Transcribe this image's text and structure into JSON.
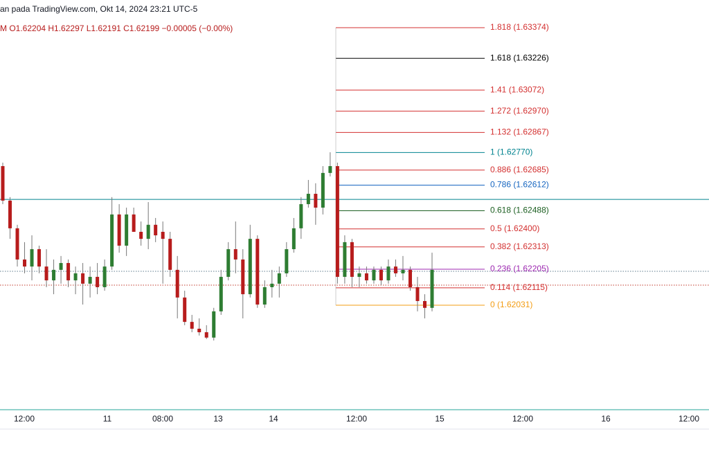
{
  "header": {
    "title": "an pada TradingView.com, Okt 14, 2024 23:21 UTC-5",
    "ohlc": "M O1.62204 H1.62297 L1.62191 C1.62199 −0.00005 (−0.00%)"
  },
  "chart_data": {
    "type": "candlestick",
    "ylim": [
      1.61525,
      1.63508
    ],
    "up_color": "#2e7d32",
    "down_color": "#b71c1c",
    "open": [
      1.62704,
      1.62537,
      1.62403,
      1.62252,
      1.62218,
      1.62302,
      1.62218,
      1.62151,
      1.62202,
      1.62235,
      1.62151,
      1.62185,
      1.62135,
      1.62168,
      1.62118,
      1.62218,
      1.6247,
      1.62319,
      1.6247,
      1.62386,
      1.62352,
      1.6242,
      1.62386,
      1.62352,
      1.62202,
      1.62068,
      1.6195,
      1.61917,
      1.619,
      1.61874,
      1.62001,
      1.62168,
      1.62302,
      1.62252,
      1.62084,
      1.62352,
      1.62034,
      1.62118,
      1.62135,
      1.62185,
      1.62302,
      1.62403,
      1.6252,
      1.6257,
      1.62503,
      1.62671,
      1.62704,
      1.62168,
      1.62336,
      1.62168,
      1.62185,
      1.62151,
      1.62202,
      1.62151,
      1.62218,
      1.62185,
      1.62202,
      1.62118,
      1.62051,
      1.62018
    ],
    "high": [
      1.62721,
      1.62554,
      1.6242,
      1.62336,
      1.62369,
      1.62319,
      1.62302,
      1.62252,
      1.62269,
      1.62252,
      1.62218,
      1.62235,
      1.62218,
      1.62235,
      1.62252,
      1.62554,
      1.6252,
      1.62503,
      1.62503,
      1.62436,
      1.6253,
      1.62453,
      1.62436,
      1.62386,
      1.62269,
      1.62101,
      1.61984,
      1.61967,
      1.61934,
      1.62018,
      1.62202,
      1.62336,
      1.62436,
      1.62302,
      1.6242,
      1.62369,
      1.62151,
      1.62202,
      1.62218,
      1.62336,
      1.62453,
      1.62554,
      1.62637,
      1.62621,
      1.62704,
      1.62771,
      1.62721,
      1.62369,
      1.62352,
      1.62218,
      1.62218,
      1.62218,
      1.62218,
      1.62252,
      1.62252,
      1.62269,
      1.62218,
      1.62168,
      1.62084,
      1.62285
    ],
    "low": [
      1.6252,
      1.62352,
      1.62218,
      1.62185,
      1.62151,
      1.62185,
      1.62118,
      1.62084,
      1.62135,
      1.62118,
      1.62084,
      1.62034,
      1.62068,
      1.62084,
      1.62101,
      1.62202,
      1.62285,
      1.62269,
      1.62386,
      1.62319,
      1.62302,
      1.62336,
      1.62135,
      1.62168,
      1.61967,
      1.61934,
      1.619,
      1.61884,
      1.61867,
      1.6186,
      1.61984,
      1.62151,
      1.62185,
      1.61967,
      1.62068,
      1.62018,
      1.62018,
      1.62068,
      1.62068,
      1.62168,
      1.62285,
      1.62352,
      1.62503,
      1.6242,
      1.6247,
      1.62654,
      1.62135,
      1.62135,
      1.62118,
      1.62118,
      1.62135,
      1.62135,
      1.62128,
      1.62135,
      1.62168,
      1.62151,
      1.62101,
      1.62001,
      1.61967,
      1.62001
    ],
    "close": [
      1.62537,
      1.62403,
      1.62252,
      1.62218,
      1.62302,
      1.62218,
      1.62151,
      1.62202,
      1.62235,
      1.62151,
      1.62185,
      1.62135,
      1.62168,
      1.62118,
      1.62218,
      1.6247,
      1.62319,
      1.6247,
      1.62386,
      1.62352,
      1.6242,
      1.62369,
      1.62352,
      1.62202,
      1.62068,
      1.6195,
      1.61917,
      1.619,
      1.61874,
      1.62001,
      1.62168,
      1.62302,
      1.62252,
      1.62084,
      1.62352,
      1.62034,
      1.62118,
      1.62135,
      1.62185,
      1.62302,
      1.62403,
      1.6252,
      1.6257,
      1.62503,
      1.62671,
      1.62704,
      1.62168,
      1.62336,
      1.62168,
      1.62185,
      1.62151,
      1.62202,
      1.62151,
      1.62218,
      1.62185,
      1.62202,
      1.62118,
      1.62051,
      1.62018,
      1.62202
    ],
    "fib_levels": [
      {
        "value": 1.63374,
        "label": "1.818 (1.63374)",
        "color": "#d32f2f"
      },
      {
        "value": 1.63226,
        "label": "1.618 (1.63226)",
        "color": "#000000"
      },
      {
        "value": 1.63072,
        "label": "1.41 (1.63072)",
        "color": "#d32f2f"
      },
      {
        "value": 1.6297,
        "label": "1.272 (1.62970)",
        "color": "#d32f2f"
      },
      {
        "value": 1.62867,
        "label": "1.132 (1.62867)",
        "color": "#d32f2f"
      },
      {
        "value": 1.6277,
        "label": "1 (1.62770)",
        "color": "#00838f"
      },
      {
        "value": 1.62685,
        "label": "0.886 (1.62685)",
        "color": "#d32f2f"
      },
      {
        "value": 1.62612,
        "label": "0.786 (1.62612)",
        "color": "#1565c0"
      },
      {
        "value": 1.62488,
        "label": "0.618 (1.62488)",
        "color": "#1b5e20"
      },
      {
        "value": 1.624,
        "label": "0.5 (1.62400)",
        "color": "#d32f2f"
      },
      {
        "value": 1.62313,
        "label": "0.382 (1.62313)",
        "color": "#d32f2f"
      },
      {
        "value": 1.62205,
        "label": "0.236 (1.62205)",
        "color": "#9c27b0"
      },
      {
        "value": 1.62115,
        "label": "0.114 (1.62115)",
        "color": "#d32f2f"
      },
      {
        "value": 1.62031,
        "label": "0 (1.62031)",
        "color": "#f39c12"
      }
    ],
    "price_lines": [
      {
        "value": 1.62543,
        "color": "#00838f",
        "dashed": false
      },
      {
        "value": 1.62195,
        "color": "#5d7a8c",
        "dashed": true
      },
      {
        "value": 1.62128,
        "color": "#c0392b",
        "dashed": true
      }
    ],
    "x_labels": [
      "12:00",
      "11",
      "08:00",
      "13",
      "14",
      "12:00",
      "15",
      "12:00",
      "16",
      "12:00"
    ]
  }
}
